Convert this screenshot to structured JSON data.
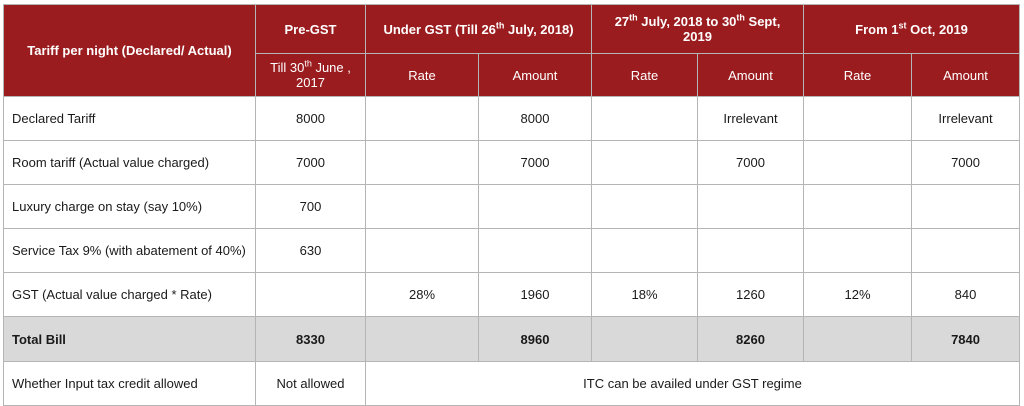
{
  "header": {
    "row_label": "Tariff per night (Declared/ Actual)",
    "pre_gst": "Pre-GST",
    "pre_gst_sub": "Till 30th June , 2017",
    "period2": "Under GST (Till 26th July, 2018)",
    "period3": "27th July, 2018 to 30th Sept, 2019",
    "period4": "From 1st Oct, 2019",
    "rate": "Rate",
    "amount": "Amount"
  },
  "rows": [
    {
      "label": "Declared Tariff",
      "pre": "8000",
      "r2": "",
      "a2": "8000",
      "r3": "",
      "a3": "Irrelevant",
      "r4": "",
      "a4": "Irrelevant"
    },
    {
      "label": "Room tariff (Actual value charged)",
      "pre": "7000",
      "r2": "",
      "a2": "7000",
      "r3": "",
      "a3": "7000",
      "r4": "",
      "a4": "7000"
    },
    {
      "label": "Luxury charge on stay (say 10%)",
      "pre": "700",
      "r2": "",
      "a2": "",
      "r3": "",
      "a3": "",
      "r4": "",
      "a4": ""
    },
    {
      "label": "Service Tax 9% (with abatement of 40%)",
      "pre": "630",
      "r2": "",
      "a2": "",
      "r3": "",
      "a3": "",
      "r4": "",
      "a4": ""
    },
    {
      "label": "GST (Actual value charged * Rate)",
      "pre": "",
      "r2": "28%",
      "a2": "1960",
      "r3": "18%",
      "a3": "1260",
      "r4": "12%",
      "a4": "840"
    }
  ],
  "total": {
    "label": "Total Bill",
    "pre": "8330",
    "r2": "",
    "a2": "8960",
    "r3": "",
    "a3": "8260",
    "r4": "",
    "a4": "7840"
  },
  "itc": {
    "label": "Whether Input tax credit allowed",
    "pre": "Not allowed",
    "gst": "ITC can be availed under GST regime"
  },
  "colors": {
    "header_bg": "#9b1c1f",
    "total_bg": "#d9d9d9"
  }
}
